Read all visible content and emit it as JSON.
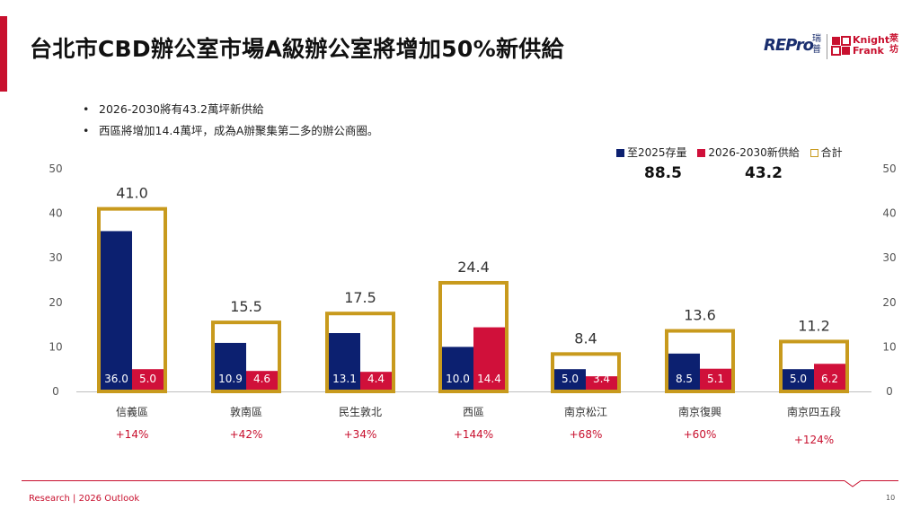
{
  "title": "台北市CBD辦公室市場A級辦公室將增加50%新供給",
  "logos": {
    "repro_main": "REPro",
    "repro_cn": "瑞普",
    "kf_text": "Knight Frank",
    "kf_cn": "萊坊"
  },
  "bullets": [
    "2026-2030將有43.2萬坪新供給",
    "西區將增加14.4萬坪，成為A辦聚集第二多的辦公商圈。"
  ],
  "legend": {
    "stock": "至2025存量",
    "new_supply": "2026-2030新供給",
    "total": "合計"
  },
  "totals": {
    "stock_total": "88.5",
    "new_total": "43.2"
  },
  "colors": {
    "stock": "#0c2070",
    "new_supply": "#d0103a",
    "total_outline": "#c89a1d",
    "growth_text": "#c8102e"
  },
  "chart_data": {
    "type": "bar",
    "categories": [
      "信義區",
      "敦南區",
      "民生敦北",
      "西區",
      "南京松江",
      "南京復興",
      "南京四五段"
    ],
    "series": [
      {
        "name": "至2025存量",
        "values": [
          36.0,
          10.9,
          13.1,
          10.0,
          5.0,
          8.5,
          5.0
        ]
      },
      {
        "name": "2026-2030新供給",
        "values": [
          5.0,
          4.6,
          4.4,
          14.4,
          3.4,
          5.1,
          6.2
        ]
      },
      {
        "name": "合計",
        "values": [
          41.0,
          15.5,
          17.5,
          24.4,
          8.4,
          13.6,
          11.2
        ]
      }
    ],
    "value_labels": {
      "stock": [
        "36.0",
        "10.9",
        "13.1",
        "10.0",
        "5.0",
        "8.5",
        "5.0"
      ],
      "new_supply": [
        "5.0",
        "4.6",
        "4.4",
        "14.4",
        "3.4",
        "5.1",
        "6.2"
      ],
      "total": [
        "41.0",
        "15.5",
        "17.5",
        "24.4",
        "8.4",
        "13.6",
        "11.2"
      ]
    },
    "growth": [
      "+14%",
      "+42%",
      "+34%",
      "+144%",
      "+68%",
      "+60%",
      "+124%"
    ],
    "yticks": [
      "0",
      "10",
      "20",
      "30",
      "40",
      "50"
    ],
    "ylim": [
      0,
      50
    ],
    "grid": false,
    "legend_position": "top-right",
    "dual_y_axis": true
  },
  "footer": {
    "text": "Research | 2026 Outlook",
    "page": "10"
  }
}
